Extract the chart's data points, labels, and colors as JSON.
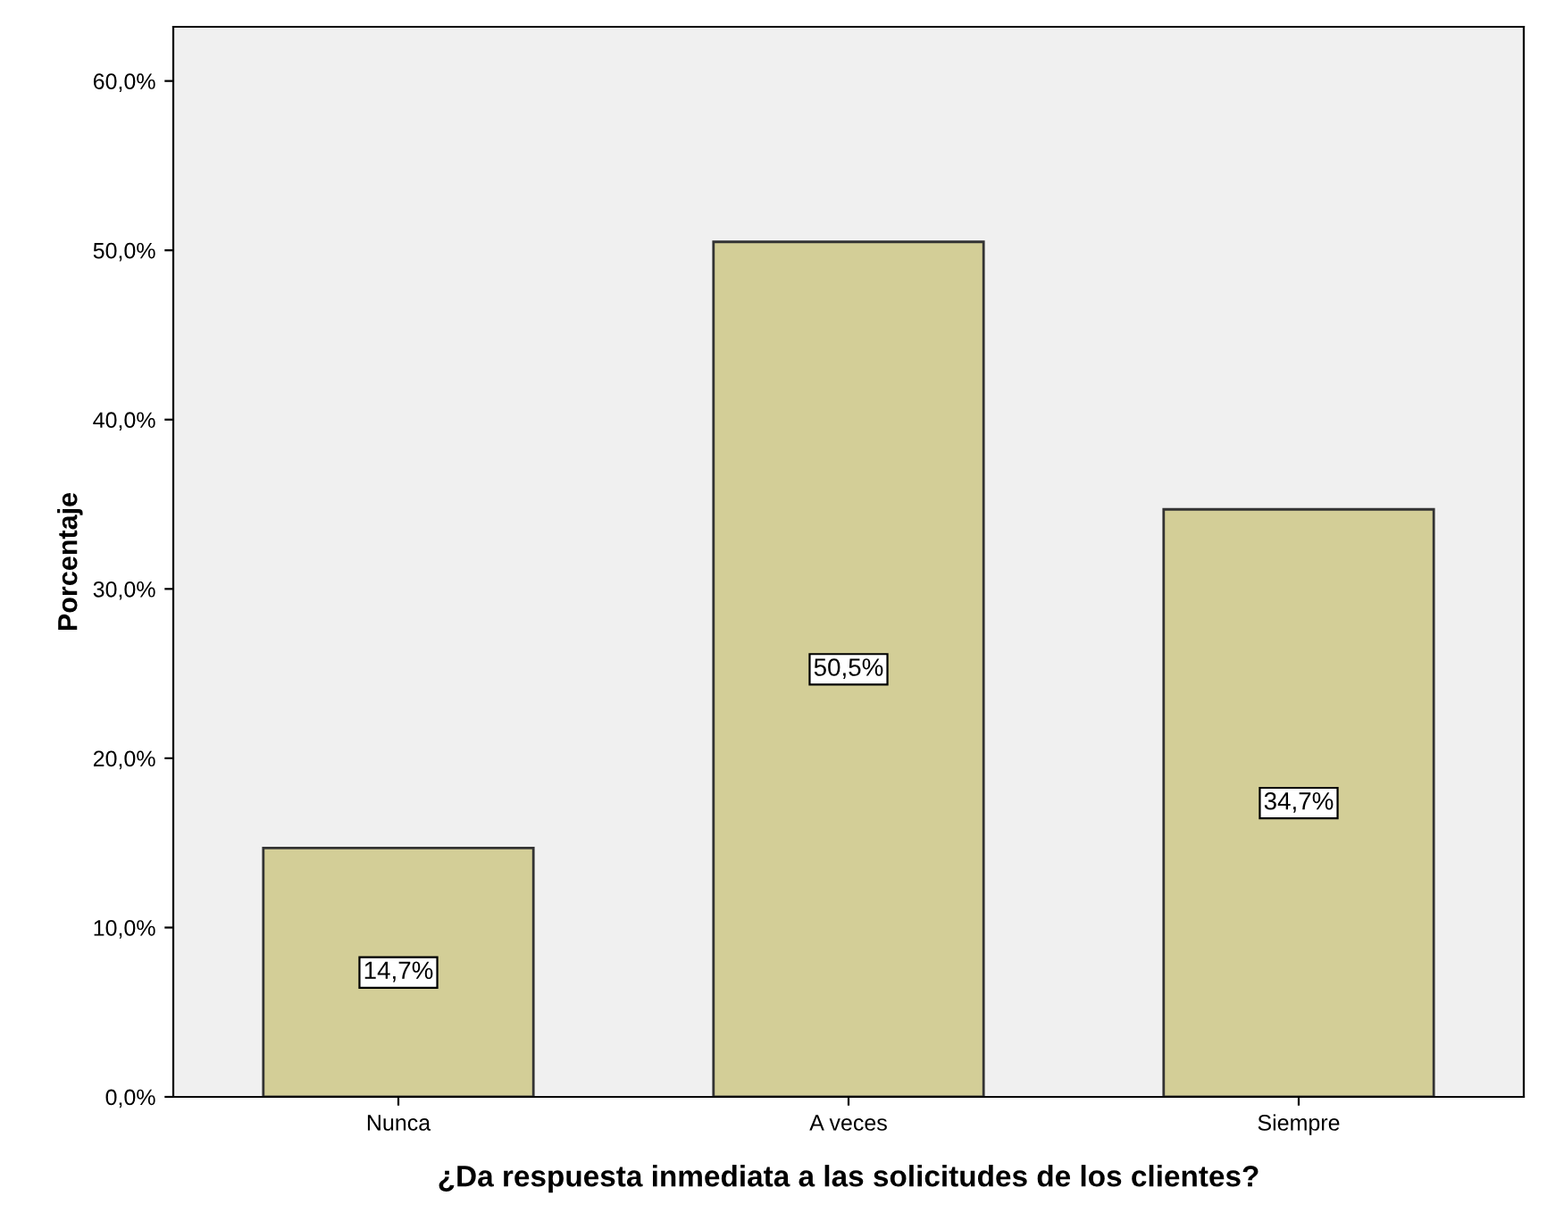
{
  "chart_data": {
    "type": "bar",
    "xlabel": "¿Da respuesta inmediata a las solicitudes de los clientes?",
    "ylabel": "Porcentaje",
    "categories": [
      "Nunca",
      "A veces",
      "Siempre"
    ],
    "values": [
      14.7,
      50.5,
      34.7
    ],
    "value_labels": [
      "14,7%",
      "50,5%",
      "34,7%"
    ],
    "color": "#d3ce97",
    "ylim": [
      0,
      63.2
    ],
    "yticks": [
      {
        "value": 0,
        "label": "0,0%"
      },
      {
        "value": 10,
        "label": "10,0%"
      },
      {
        "value": 20,
        "label": "20,0%"
      },
      {
        "value": 30,
        "label": "30,0%"
      },
      {
        "value": 40,
        "label": "40,0%"
      },
      {
        "value": 50,
        "label": "50,0%"
      },
      {
        "value": 60,
        "label": "60,0%"
      }
    ],
    "grid": false,
    "legend": false
  }
}
